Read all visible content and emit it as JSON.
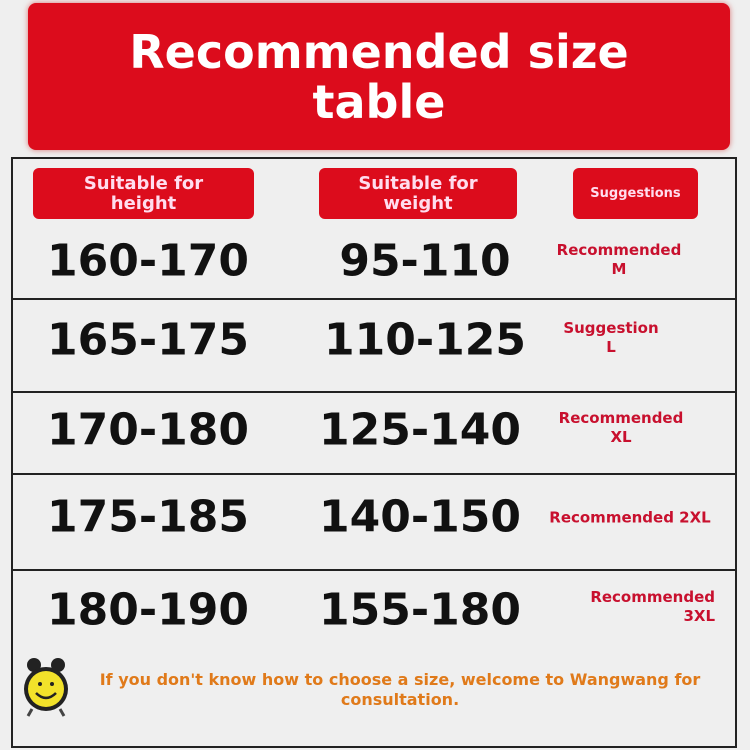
{
  "title": "Recommended size table",
  "headers": {
    "height": "Suitable for height",
    "weight": "Suitable for weight",
    "suggestion": "Suggestions"
  },
  "rows": [
    {
      "height": "160-170",
      "weight": "95-110",
      "suggestion": "Recommended M"
    },
    {
      "height": "165-175",
      "weight": "110-125",
      "suggestion": "Suggestion L"
    },
    {
      "height": "170-180",
      "weight": "125-140",
      "suggestion": "Recommended XL"
    },
    {
      "height": "175-185",
      "weight": "140-150",
      "suggestion": "Recommended 2XL"
    },
    {
      "height": "180-190",
      "weight": "155-180",
      "suggestion": "Recommended 3XL"
    }
  ],
  "note": "If you don't know how to choose a size, welcome to Wangwang for consultation.",
  "icons": {
    "note": "alarm-clock-smiley-icon"
  },
  "colors": {
    "accent": "#dc0c1c",
    "suggestion_text": "#c8102e",
    "note_text": "#e07a1a"
  }
}
